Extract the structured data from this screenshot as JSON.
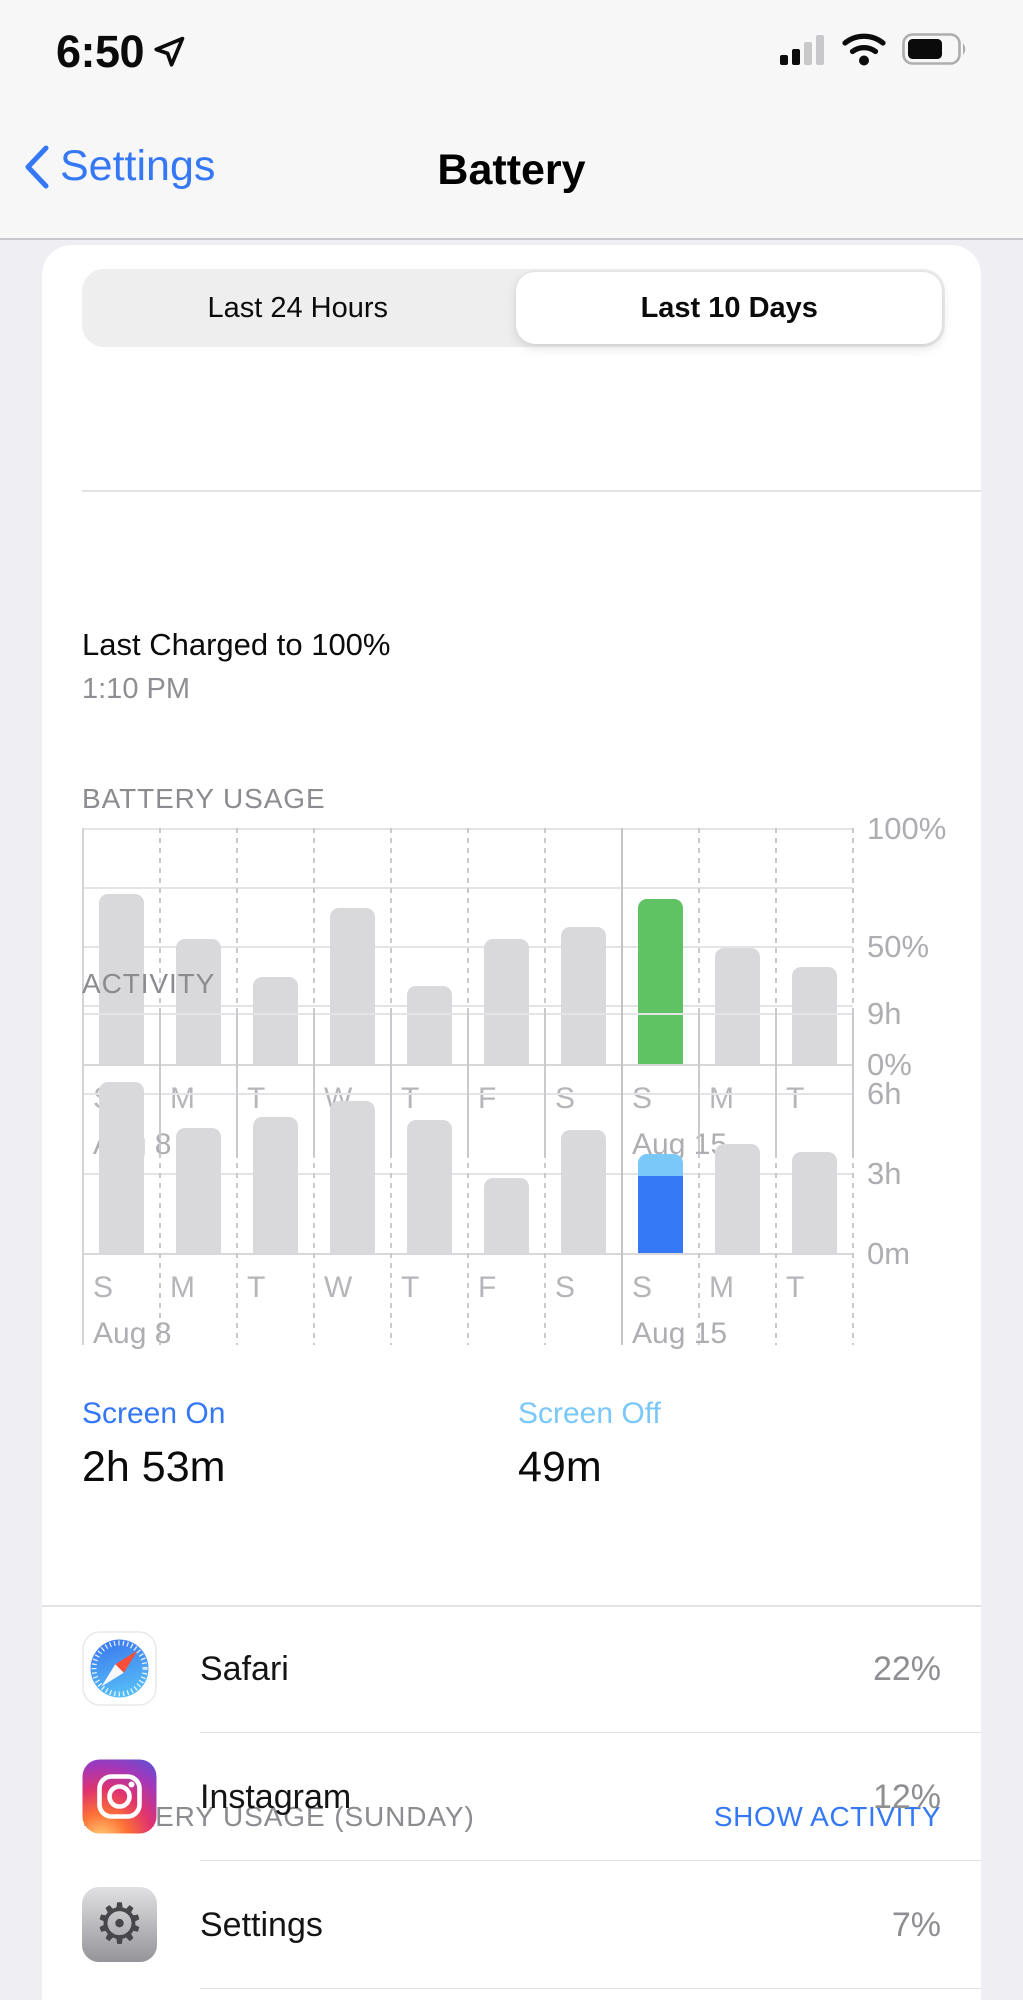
{
  "colors": {
    "accent_blue": "#3478F6",
    "light_blue": "#7AC8F9",
    "green": "#5FC363",
    "bar_gray": "#D9D9DC"
  },
  "status_bar": {
    "time": "6:50",
    "signal_bars_filled": 2,
    "signal_bars_total": 4,
    "battery_fill_percent": 72
  },
  "nav": {
    "back_label": "Settings",
    "title": "Battery"
  },
  "segmented": {
    "options": [
      "Last 24 Hours",
      "Last 10 Days"
    ],
    "selected": "Last 10 Days"
  },
  "last_charged": {
    "title": "Last Charged to 100%",
    "time": "1:10 PM"
  },
  "charts": [
    {
      "id": "battery-usage",
      "header": "BATTERY USAGE",
      "type": "bar",
      "unit": "percent",
      "categories": [
        "S",
        "M",
        "T",
        "W",
        "T",
        "F",
        "S",
        "S",
        "M",
        "T"
      ],
      "values": [
        72,
        53,
        37,
        66,
        33,
        53,
        58,
        70,
        49,
        41
      ],
      "ymax": 100,
      "grid_values": [
        0,
        25,
        50,
        75,
        100
      ],
      "y_ticks": [
        {
          "value": 100,
          "label": "100%"
        },
        {
          "value": 50,
          "label": "50%"
        },
        {
          "value": 0,
          "label": "0%"
        }
      ],
      "period_labels": [
        {
          "slot": 0,
          "label": "Aug 8"
        },
        {
          "slot": 7,
          "label": "Aug 15"
        }
      ],
      "week_divider_slot": 7,
      "highlight": {
        "index": 7,
        "color": "#5FC363"
      },
      "bar_color": "#D9D9DC"
    },
    {
      "id": "activity",
      "header": "ACTIVITY",
      "type": "bar",
      "unit": "hours",
      "categories": [
        "S",
        "M",
        "T",
        "W",
        "T",
        "F",
        "S",
        "S",
        "M",
        "T"
      ],
      "values": [
        6.4,
        4.7,
        5.1,
        5.7,
        5.0,
        2.8,
        4.6,
        3.7,
        4.1,
        3.8
      ],
      "ymax": 9,
      "grid_values": [
        0,
        3,
        6,
        9
      ],
      "y_ticks": [
        {
          "value": 9,
          "label": "9h"
        },
        {
          "value": 6,
          "label": "6h"
        },
        {
          "value": 3,
          "label": "3h"
        },
        {
          "value": 0,
          "label": "0m"
        }
      ],
      "period_labels": [
        {
          "slot": 0,
          "label": "Aug 8"
        },
        {
          "slot": 7,
          "label": "Aug 15"
        }
      ],
      "week_divider_slot": 7,
      "highlight": {
        "index": 7,
        "stack": [
          {
            "name": "Screen On",
            "color": "#3478F6",
            "value": 2.9
          },
          {
            "name": "Screen Off",
            "color": "#7AC8F9",
            "value": 0.8
          }
        ]
      },
      "bar_color": "#D9D9DC"
    }
  ],
  "screen_time": {
    "on_label": "Screen On",
    "on_value": "2h 53m",
    "off_label": "Screen Off",
    "off_value": "49m"
  },
  "app_usage": {
    "header": "BATTERY USAGE (SUNDAY)",
    "action": "SHOW ACTIVITY",
    "rows": [
      {
        "app": "Safari",
        "percent": "22%",
        "icon": "safari-icon"
      },
      {
        "app": "Instagram",
        "percent": "12%",
        "icon": "instagram-icon"
      },
      {
        "app": "Settings",
        "percent": "7%",
        "icon": "settings-icon"
      }
    ]
  }
}
